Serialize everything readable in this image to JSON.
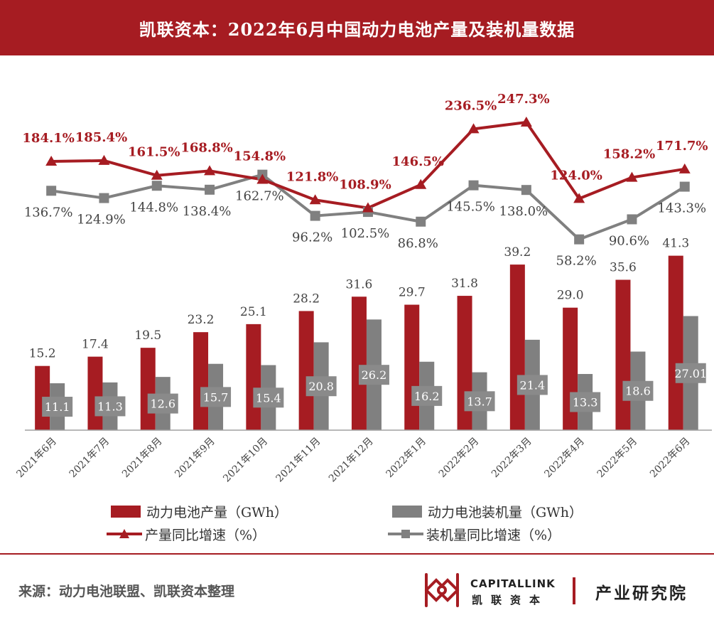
{
  "header": {
    "title": "凯联资本：2022年6月中国动力电池产量及装机量数据"
  },
  "colors": {
    "primary": "#a61c22",
    "secondary": "#808080"
  },
  "chart_data": {
    "type": "bar+line",
    "categories": [
      "2021年6月",
      "2021年7月",
      "2021年8月",
      "2021年9月",
      "2021年10月",
      "2021年11月",
      "2021年12月",
      "2022年1月",
      "2022年2月",
      "2022年3月",
      "2022年4月",
      "2022年5月",
      "2022年6月"
    ],
    "series": [
      {
        "name": "动力电池产量（GWh）",
        "kind": "bar",
        "color": "#a61c22",
        "values": [
          15.2,
          17.4,
          19.5,
          23.2,
          25.1,
          28.2,
          31.6,
          29.7,
          31.8,
          39.2,
          29.0,
          35.6,
          41.3
        ],
        "labels": [
          "15.2",
          "17.4",
          "19.5",
          "23.2",
          "25.1",
          "28.2",
          "31.6",
          "29.7",
          "31.8",
          "39.2",
          "29.0",
          "35.6",
          "41.3"
        ]
      },
      {
        "name": "动力电池装机量（GWh）",
        "kind": "bar",
        "color": "#808080",
        "values": [
          11.1,
          11.3,
          12.6,
          15.7,
          15.4,
          20.8,
          26.2,
          16.2,
          13.7,
          21.4,
          13.3,
          18.6,
          27.01
        ],
        "labels": [
          "11.1",
          "11.3",
          "12.6",
          "15.7",
          "15.4",
          "20.8",
          "26.2",
          "16.2",
          "13.7",
          "21.4",
          "13.3",
          "18.6",
          "27.01"
        ]
      },
      {
        "name": "产量同比增速（%）",
        "kind": "line",
        "color": "#a61c22",
        "marker": "triangle",
        "values": [
          184.1,
          185.4,
          161.5,
          168.8,
          154.8,
          121.8,
          108.9,
          146.5,
          236.5,
          247.3,
          124.0,
          158.2,
          171.7
        ],
        "labels": [
          "184.1%",
          "185.4%",
          "161.5%",
          "168.8%",
          "154.8%",
          "121.8%",
          "108.9%",
          "146.5%",
          "236.5%",
          "247.3%",
          "124.0%",
          "158.2%",
          "171.7%"
        ]
      },
      {
        "name": "装机量同比增速（%）",
        "kind": "line",
        "color": "#808080",
        "marker": "square",
        "values": [
          136.7,
          124.9,
          144.8,
          138.4,
          162.7,
          96.2,
          102.5,
          86.8,
          145.5,
          138.0,
          58.2,
          90.6,
          143.3
        ],
        "labels": [
          "136.7%",
          "124.9%",
          "144.8%",
          "138.4%",
          "162.7%",
          "96.2%",
          "102.5%",
          "86.8%",
          "145.5%",
          "138.0%",
          "58.2%",
          "90.6%",
          "143.3%"
        ]
      }
    ],
    "bar_axis_range": [
      0,
      85
    ],
    "line_axis_range": [
      -250,
      330
    ],
    "grid": false,
    "legend_position": "bottom"
  },
  "legend": {
    "production": "动力电池产量（GWh）",
    "installed": "动力电池装机量（GWh）",
    "production_growth": "产量同比增速（%）",
    "installed_growth": "装机量同比增速（%）"
  },
  "footer": {
    "source": "来源：动力电池联盟、凯联资本整理",
    "brand_en": "CAPITALLINK",
    "brand_cn": "凯联资本",
    "institute": "产业研究院"
  }
}
